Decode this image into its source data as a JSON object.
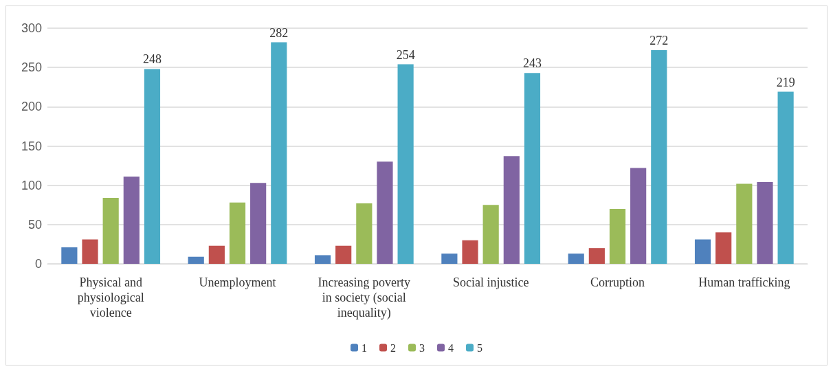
{
  "chart_data": {
    "type": "bar",
    "categories": [
      "Physical and physiological violence",
      "Unemployment",
      "Increasing poverty in society (social inequality)",
      "Social injustice",
      "Corruption",
      "Human trafficking"
    ],
    "series": [
      {
        "name": "1",
        "color": "#4f81bd",
        "values": [
          21,
          9,
          11,
          13,
          13,
          31
        ]
      },
      {
        "name": "2",
        "color": "#c0504d",
        "values": [
          31,
          23,
          23,
          30,
          20,
          40
        ]
      },
      {
        "name": "3",
        "color": "#9bbb59",
        "values": [
          84,
          78,
          77,
          75,
          70,
          102
        ]
      },
      {
        "name": "4",
        "color": "#8064a2",
        "values": [
          111,
          103,
          130,
          137,
          122,
          104
        ]
      },
      {
        "name": "5",
        "color": "#4bacc6",
        "values": [
          248,
          282,
          254,
          243,
          272,
          219
        ],
        "value_labels": [
          "248",
          "282",
          "254",
          "243",
          "272",
          "219"
        ]
      }
    ],
    "ylim": [
      0,
      300
    ],
    "yticks": [
      0,
      50,
      100,
      150,
      200,
      250,
      300
    ],
    "grid": "y",
    "legend": "bottom"
  }
}
